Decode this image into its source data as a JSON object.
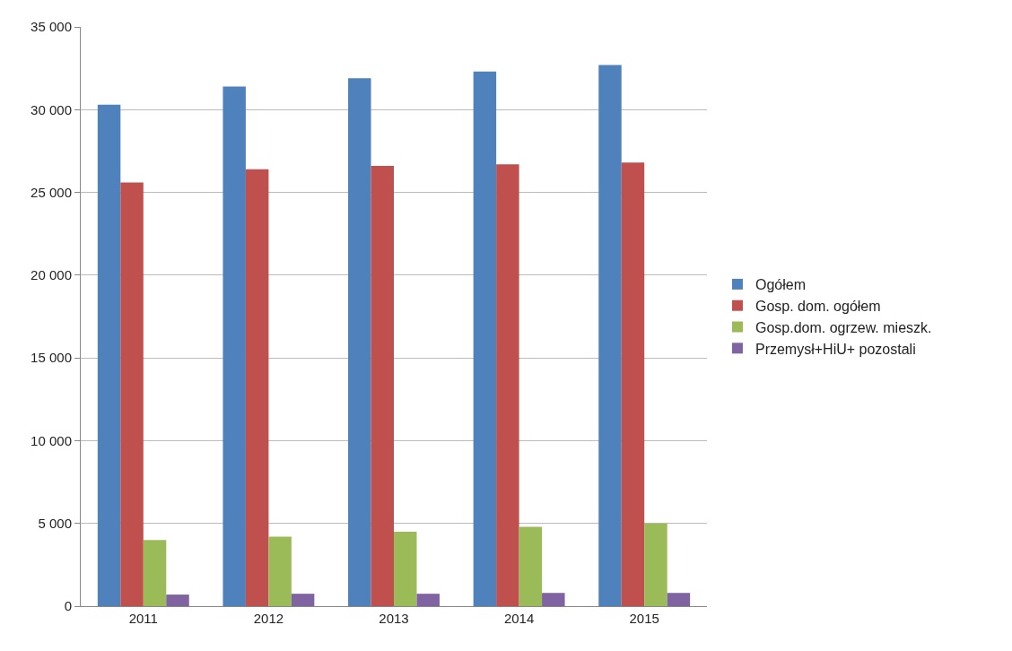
{
  "chart_data": {
    "type": "bar",
    "categories": [
      "2011",
      "2012",
      "2013",
      "2014",
      "2015"
    ],
    "series": [
      {
        "name": "Ogółem",
        "color": "#4f81bd",
        "values": [
          30300,
          31400,
          31900,
          32300,
          32700
        ]
      },
      {
        "name": "Gosp. dom. ogółem",
        "color": "#c0504d",
        "values": [
          25600,
          26400,
          26600,
          26700,
          26800
        ]
      },
      {
        "name": "Gosp.dom. ogrzew. mieszk.",
        "color": "#9bbb59",
        "values": [
          4000,
          4200,
          4500,
          4800,
          5000
        ]
      },
      {
        "name": "Przemysł+HiU+ pozostali",
        "color": "#8064a2",
        "values": [
          700,
          750,
          750,
          800,
          800
        ]
      }
    ],
    "ylim": [
      0,
      35000
    ],
    "yticks": [
      {
        "value": 0,
        "label": "0"
      },
      {
        "value": 5000,
        "label": "5 000"
      },
      {
        "value": 10000,
        "label": "10 000"
      },
      {
        "value": 15000,
        "label": "15 000"
      },
      {
        "value": 20000,
        "label": "20 000"
      },
      {
        "value": 25000,
        "label": "25 000"
      },
      {
        "value": 30000,
        "label": "30 000"
      },
      {
        "value": 35000,
        "label": "35 000"
      }
    ],
    "grid": "y",
    "legend": "right"
  }
}
